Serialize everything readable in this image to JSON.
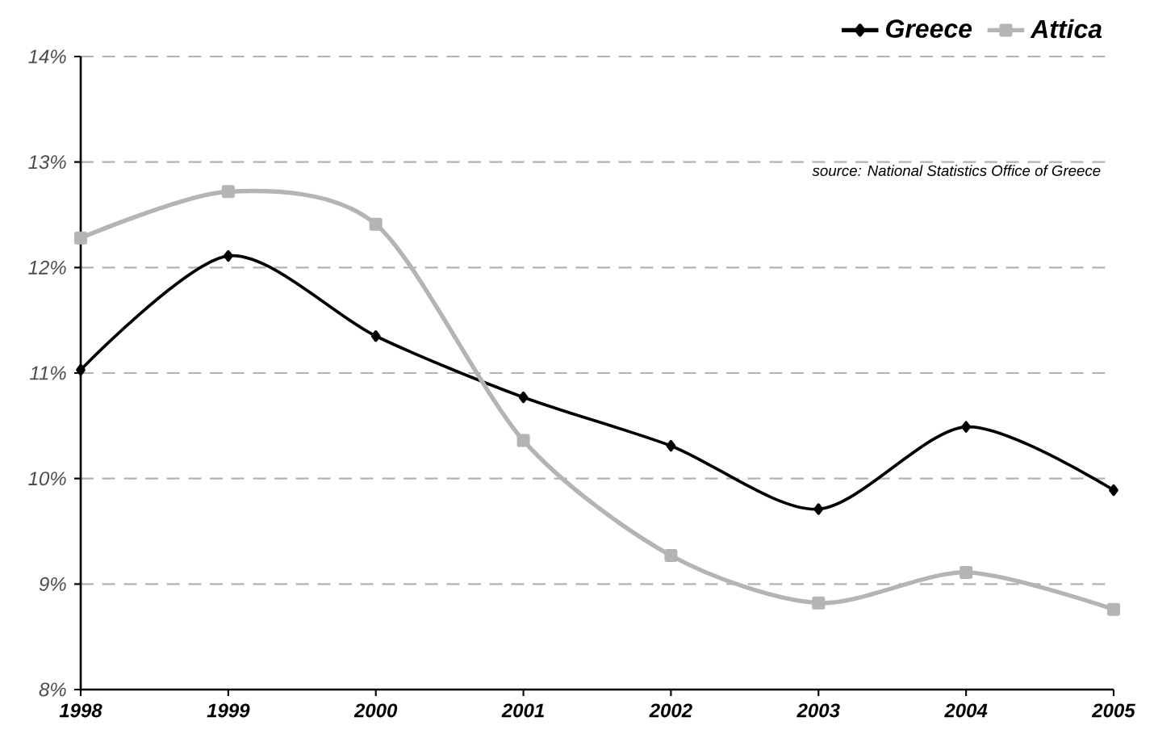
{
  "chart_data": {
    "type": "line",
    "x": [
      1998,
      1999,
      2000,
      2001,
      2002,
      2003,
      2004,
      2005
    ],
    "series": [
      {
        "name": "Greece",
        "color": "#000000",
        "marker": "diamond",
        "values": [
          11.03,
          12.11,
          11.35,
          10.77,
          10.31,
          9.71,
          10.49,
          9.89
        ]
      },
      {
        "name": "Attica",
        "color": "#b4b4b4",
        "marker": "square",
        "values": [
          12.28,
          12.72,
          12.41,
          10.36,
          9.27,
          8.82,
          9.11,
          8.76
        ]
      }
    ],
    "xlim": [
      1998,
      2005
    ],
    "xticks": [
      1998,
      1999,
      2000,
      2001,
      2002,
      2003,
      2004,
      2005
    ],
    "ylim": [
      8,
      14
    ],
    "yticks": [
      {
        "value": 8,
        "label": "8%"
      },
      {
        "value": 9,
        "label": "9%"
      },
      {
        "value": 10,
        "label": "10%"
      },
      {
        "value": 11,
        "label": "11%"
      },
      {
        "value": 12,
        "label": "12%"
      },
      {
        "value": 13,
        "label": "13%"
      },
      {
        "value": 14,
        "label": "14%"
      }
    ],
    "grid": "y",
    "legend": "top right",
    "line_style": "solid",
    "annotations": [
      "source: National Statistics Office of Greece"
    ]
  }
}
